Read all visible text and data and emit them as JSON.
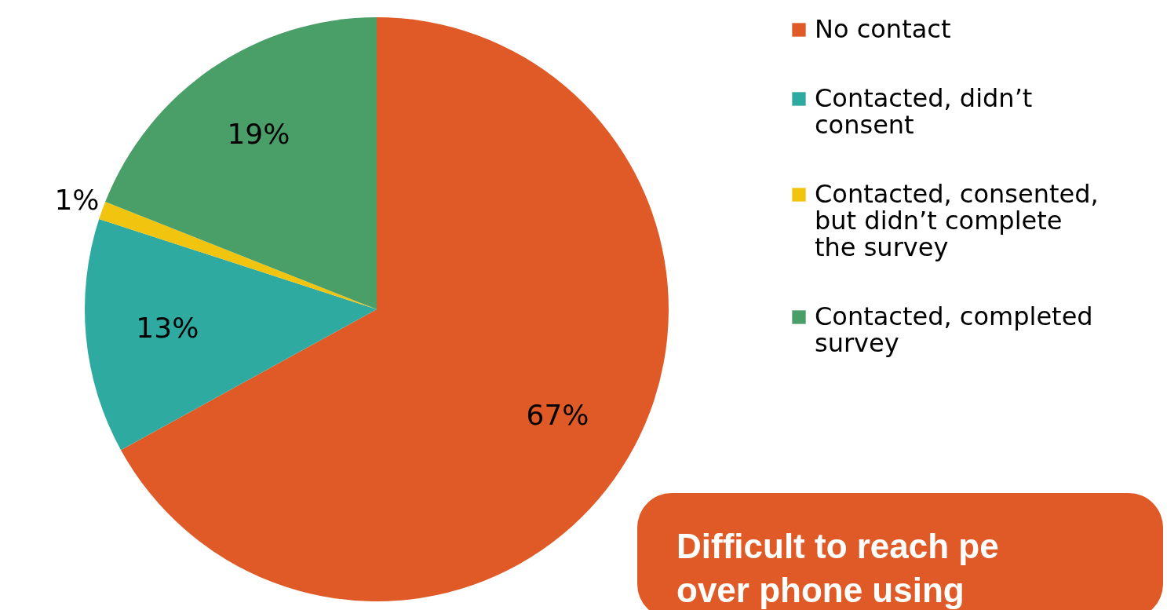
{
  "chart_data": {
    "type": "pie",
    "categories": [
      "No contact",
      "Contacted, didn’t consent",
      "Contacted, consented, but didn’t complete the survey",
      "Contacted, completed survey"
    ],
    "values": [
      67,
      13,
      1,
      19
    ],
    "colors": [
      "#e05a27",
      "#2eaaa0",
      "#f1c40f",
      "#4a9e68"
    ],
    "value_labels": [
      "67%",
      "13%",
      "1%",
      "19%"
    ],
    "legend": "top right",
    "annotations": [
      "Difficult to reach pe",
      "over phone using"
    ]
  }
}
